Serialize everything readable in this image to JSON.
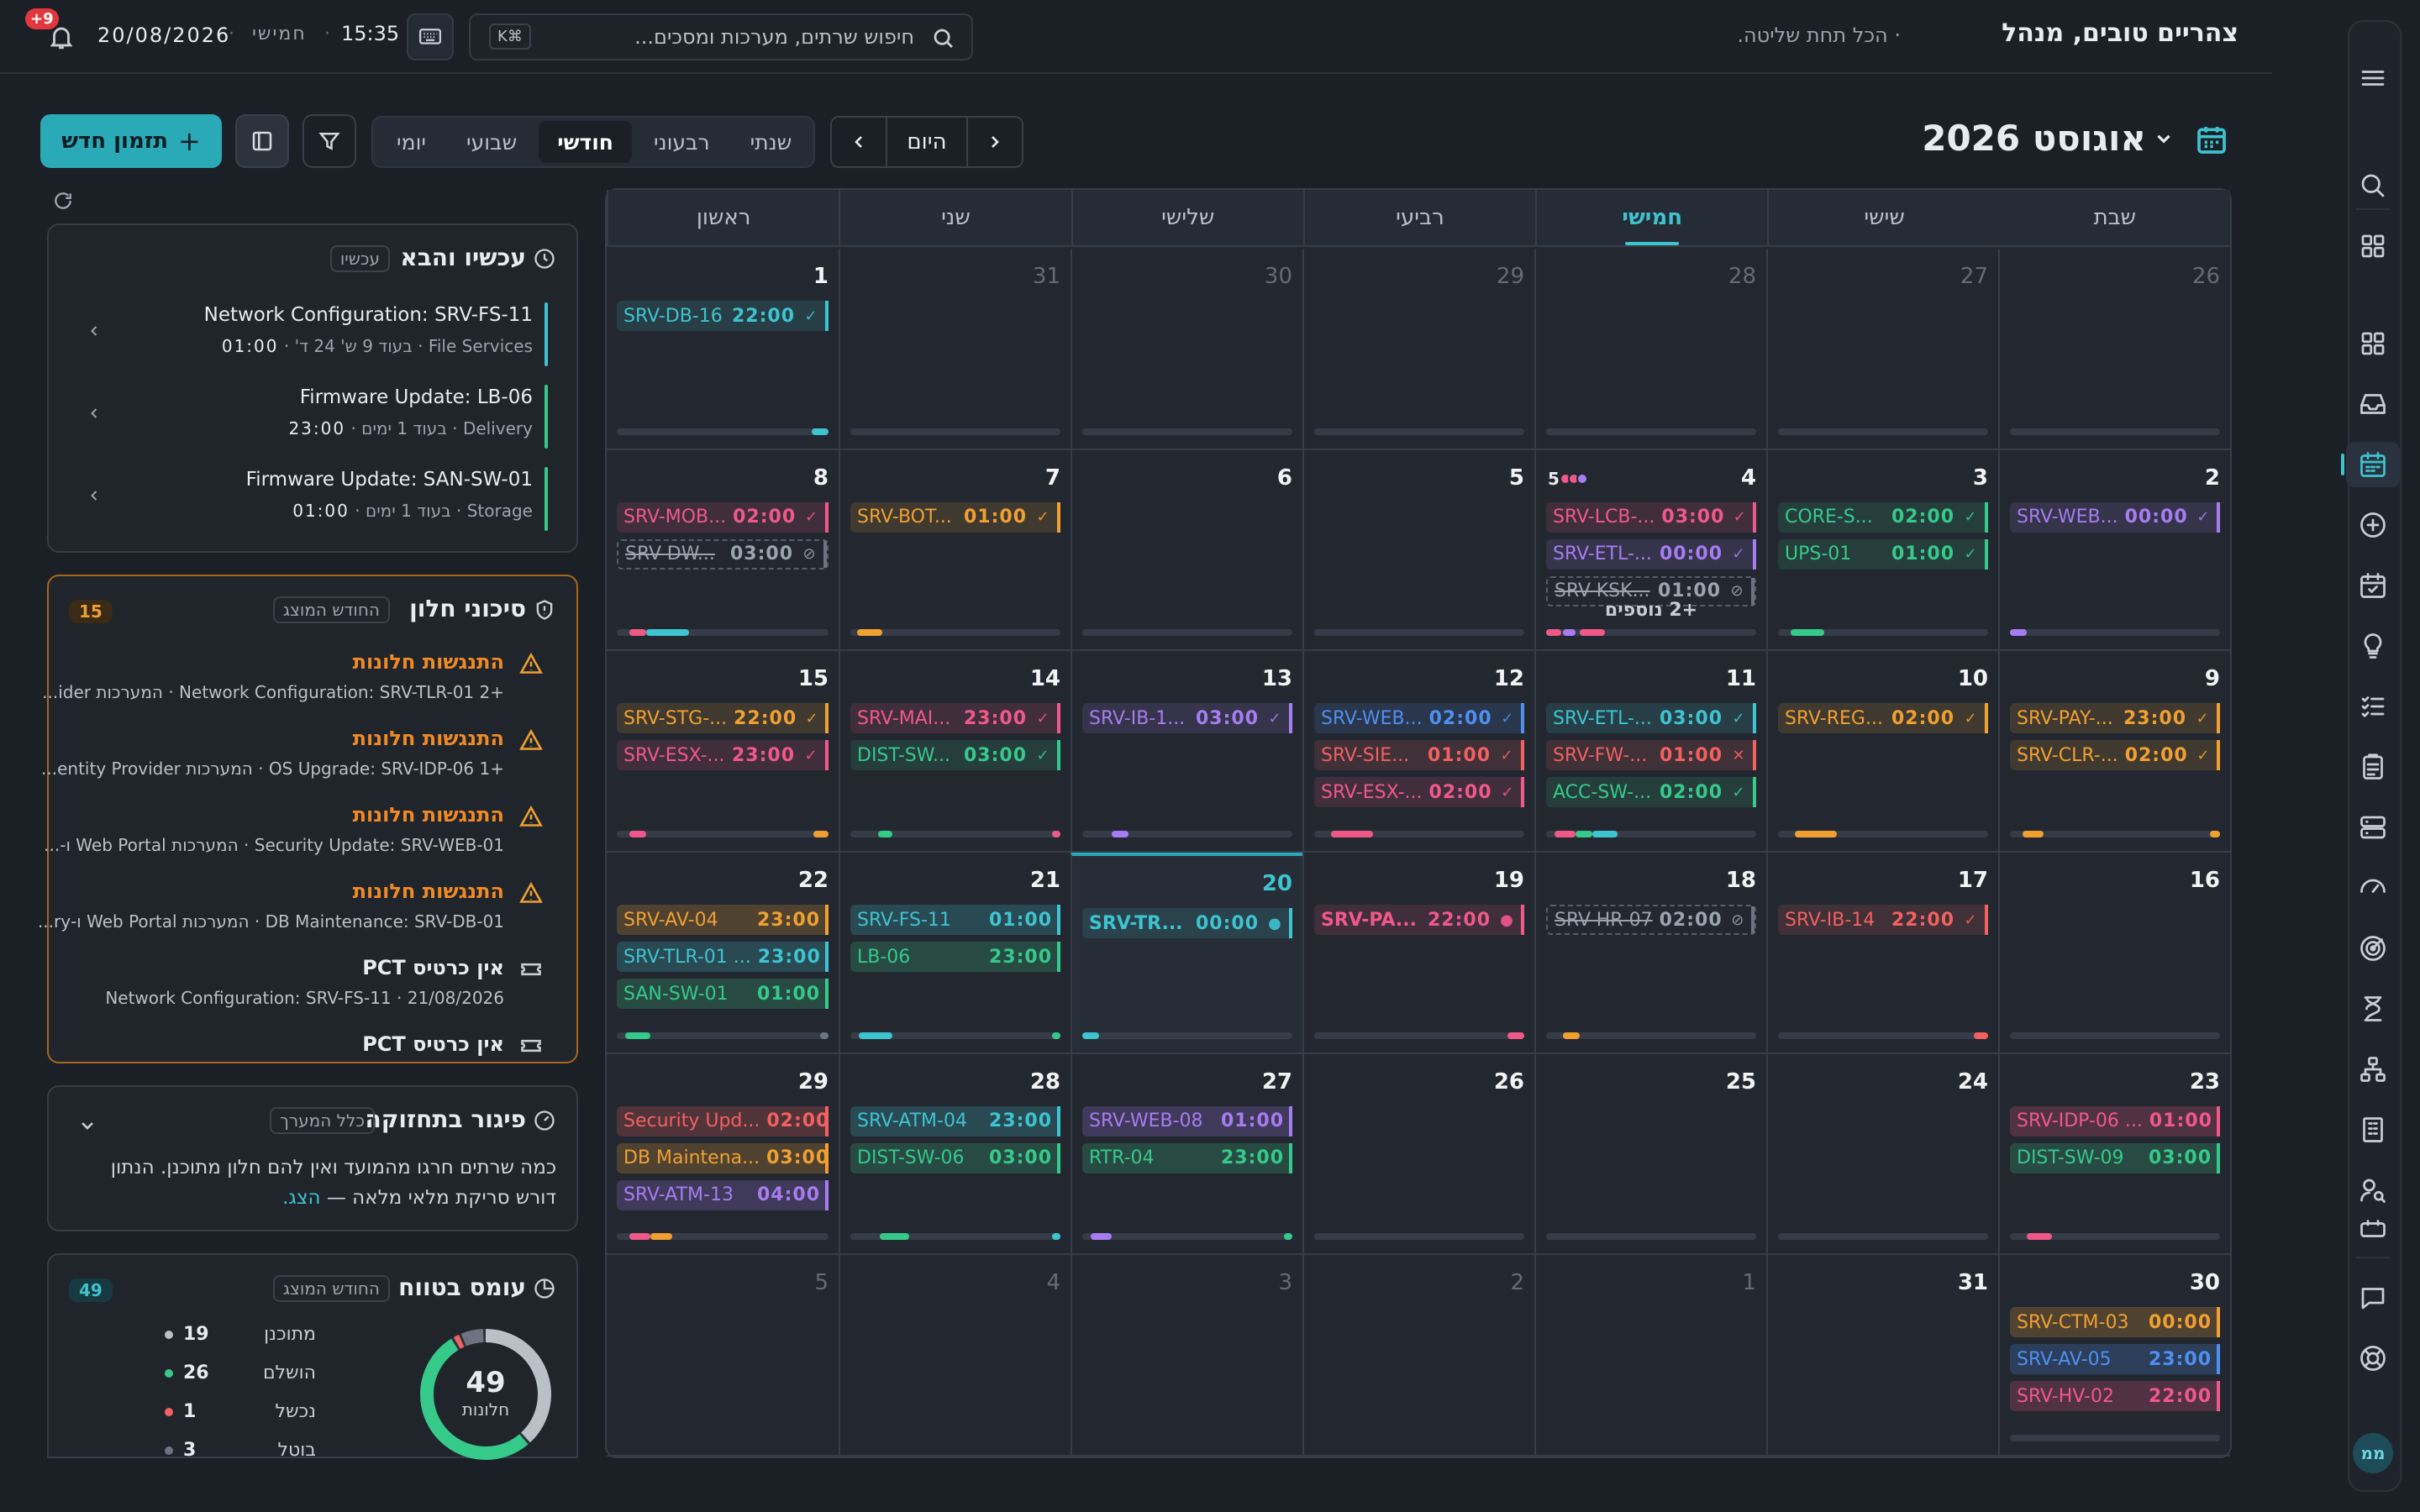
{
  "header": {
    "greeting": "צהריים טובים, מנהל",
    "subtitle": "· הכל תחת שליטה.",
    "search_placeholder": "חיפוש שרתים, מערכות ומסכים...",
    "search_shortcut": "⌘K",
    "time": "15:35",
    "weekday": "חמישי",
    "date": "20/08/2026",
    "notifications": "9+"
  },
  "toolbar": {
    "month_title": "אוגוסט 2026",
    "today": "היום",
    "views": [
      "יומי",
      "שבועי",
      "חודשי",
      "רבעוני",
      "שנתי"
    ],
    "active_view": "חודשי",
    "new_button": "תזמון חדש"
  },
  "calendar": {
    "weekdays": [
      "ראשון",
      "שני",
      "שלישי",
      "רביעי",
      "חמישי",
      "שישי",
      "שבת"
    ],
    "today_weekday": "חמישי",
    "colors": {
      "cyan": "#3ec3d0",
      "purple": "#a67cf0",
      "pink": "#f0588a",
      "orange": "#f0a030",
      "green": "#35c98a",
      "red": "#f26060",
      "blue": "#4f8ff0",
      "gray": "#6b7480"
    },
    "weeks": [
      [
        {
          "day": "26",
          "other": true,
          "events": [],
          "bar": []
        },
        {
          "day": "27",
          "other": true,
          "events": [],
          "bar": []
        },
        {
          "day": "28",
          "other": true,
          "events": [],
          "bar": []
        },
        {
          "day": "29",
          "other": true,
          "events": [],
          "bar": []
        },
        {
          "day": "30",
          "other": true,
          "events": [],
          "bar": []
        },
        {
          "day": "31",
          "other": true,
          "events": [],
          "bar": []
        },
        {
          "day": "1",
          "events": [
            {
              "name": "SRV-DB-16",
              "time": "22:00",
              "color": "cyan",
              "status": "✓"
            }
          ],
          "bar": [
            [
              "cyan",
              0,
              0.08
            ]
          ]
        }
      ],
      [
        {
          "day": "2",
          "events": [
            {
              "name": "SRV-WEB...",
              "time": "00:00",
              "color": "purple",
              "status": "✓"
            }
          ],
          "bar": [
            [
              "purple",
              0.92,
              0.08
            ]
          ]
        },
        {
          "day": "3",
          "events": [
            {
              "name": "CORE-S...",
              "time": "02:00",
              "color": "green",
              "status": "✓"
            },
            {
              "name": "UPS-01",
              "time": "01:00",
              "color": "green",
              "status": "✓"
            }
          ],
          "bar": [
            [
              "green",
              0.78,
              0.16
            ]
          ]
        },
        {
          "day": "4",
          "dots": {
            "count": "5",
            "colors": [
              "pink",
              "pink",
              "purple"
            ]
          },
          "events": [
            {
              "name": "SRV-LCB-...",
              "time": "03:00",
              "color": "pink",
              "status": "✓"
            },
            {
              "name": "SRV-ETL-...",
              "time": "00:00",
              "color": "purple",
              "status": "✓"
            },
            {
              "name": "SRV-KSK...",
              "time": "01:00",
              "color": "gray",
              "status": "⊘",
              "dashed": true
            }
          ],
          "more": "+2 נוספים",
          "bar": [
            [
              "pink",
              0.72,
              0.12
            ],
            [
              "purple",
              0.86,
              0.06
            ],
            [
              "pink",
              0.93,
              0.07
            ]
          ]
        },
        {
          "day": "5",
          "events": [],
          "bar": []
        },
        {
          "day": "6",
          "events": [],
          "bar": []
        },
        {
          "day": "7",
          "events": [
            {
              "name": "SRV-BOT...",
              "time": "01:00",
              "color": "orange",
              "status": "✓"
            }
          ],
          "bar": [
            [
              "orange",
              0.85,
              0.12
            ]
          ]
        },
        {
          "day": "8",
          "events": [
            {
              "name": "SRV-MOB...",
              "time": "02:00",
              "color": "pink",
              "status": "✓"
            },
            {
              "name": "SRV-DW...",
              "time": "03:00",
              "color": "gray",
              "status": "⊘",
              "dashed": true
            }
          ],
          "bar": [
            [
              "cyan",
              0.66,
              0.2
            ],
            [
              "pink",
              0.86,
              0.08
            ]
          ]
        }
      ],
      [
        {
          "day": "9",
          "events": [
            {
              "name": "SRV-PAY-...",
              "time": "23:00",
              "color": "orange",
              "status": "✓"
            },
            {
              "name": "SRV-CLR-...",
              "time": "02:00",
              "color": "orange",
              "status": "✓"
            }
          ],
          "bar": [
            [
              "orange",
              0,
              0.05
            ],
            [
              "orange",
              0.84,
              0.1
            ]
          ]
        },
        {
          "day": "10",
          "events": [
            {
              "name": "SRV-REG...",
              "time": "02:00",
              "color": "orange",
              "status": "✓"
            }
          ],
          "bar": [
            [
              "orange",
              0.72,
              0.2
            ]
          ]
        },
        {
          "day": "11",
          "events": [
            {
              "name": "SRV-ETL-...",
              "time": "03:00",
              "color": "cyan",
              "status": "✓"
            },
            {
              "name": "SRV-FW-...",
              "time": "01:00",
              "color": "red",
              "status": "✕"
            },
            {
              "name": "ACC-SW-...",
              "time": "02:00",
              "color": "green",
              "status": "✓"
            }
          ],
          "bar": [
            [
              "cyan",
              0.66,
              0.12
            ],
            [
              "green",
              0.78,
              0.08
            ],
            [
              "pink",
              0.86,
              0.1
            ]
          ]
        },
        {
          "day": "12",
          "events": [
            {
              "name": "SRV-WEB...",
              "time": "02:00",
              "color": "blue",
              "status": "✓"
            },
            {
              "name": "SRV-SIE...",
              "time": "01:00",
              "color": "red",
              "status": "✓"
            },
            {
              "name": "SRV-ESX-...",
              "time": "02:00",
              "color": "pink",
              "status": "✓"
            }
          ],
          "bar": [
            [
              "pink",
              0.72,
              0.2
            ]
          ]
        },
        {
          "day": "13",
          "events": [
            {
              "name": "SRV-IB-1...",
              "time": "03:00",
              "color": "purple",
              "status": "✓"
            }
          ],
          "bar": [
            [
              "purple",
              0.78,
              0.08
            ]
          ]
        },
        {
          "day": "14",
          "events": [
            {
              "name": "SRV-MAI...",
              "time": "23:00",
              "color": "pink",
              "status": "✓"
            },
            {
              "name": "DIST-SW...",
              "time": "03:00",
              "color": "green",
              "status": "✓"
            }
          ],
          "bar": [
            [
              "pink",
              0,
              0.04
            ],
            [
              "green",
              0.8,
              0.07
            ]
          ]
        },
        {
          "day": "15",
          "events": [
            {
              "name": "SRV-STG-...",
              "time": "22:00",
              "color": "orange",
              "status": "✓"
            },
            {
              "name": "SRV-ESX-...",
              "time": "23:00",
              "color": "pink",
              "status": "✓"
            }
          ],
          "bar": [
            [
              "orange",
              0,
              0.07
            ],
            [
              "pink",
              0.86,
              0.08
            ]
          ]
        }
      ],
      [
        {
          "day": "16",
          "events": [],
          "bar": []
        },
        {
          "day": "17",
          "events": [
            {
              "name": "SRV-IB-14",
              "time": "22:00",
              "color": "red",
              "status": "✓"
            }
          ],
          "bar": [
            [
              "red",
              0,
              0.07
            ]
          ]
        },
        {
          "day": "18",
          "events": [
            {
              "name": "SRV-HR-07",
              "time": "02:00",
              "color": "gray",
              "status": "⊘",
              "dashed": true
            }
          ],
          "bar": [
            [
              "orange",
              0.84,
              0.08
            ]
          ]
        },
        {
          "day": "19",
          "events": [
            {
              "name": "SRV-PA...",
              "time": "22:00",
              "color": "pink",
              "status": "●",
              "big": true
            }
          ],
          "bar": [
            [
              "pink",
              0,
              0.08
            ]
          ]
        },
        {
          "day": "20",
          "today": true,
          "events": [
            {
              "name": "SRV-TR...",
              "time": "00:00",
              "color": "cyan",
              "status": "●",
              "big": true
            }
          ],
          "bar": [
            [
              "cyan",
              0.92,
              0.08
            ]
          ]
        },
        {
          "day": "21",
          "events": [
            {
              "name": "SRV-FS-11",
              "time": "01:00",
              "color": "cyan",
              "solid": true
            },
            {
              "name": "LB-06",
              "time": "23:00",
              "color": "green",
              "solid": true
            }
          ],
          "bar": [
            [
              "green",
              0,
              0.04
            ],
            [
              "cyan",
              0.8,
              0.16
            ]
          ]
        },
        {
          "day": "22",
          "events": [
            {
              "name": "SRV-AV-04",
              "time": "23:00",
              "color": "orange",
              "solid": true
            },
            {
              "name": "SRV-TLR-01 ...",
              "time": "23:00",
              "color": "cyan",
              "solid": true
            },
            {
              "name": "SAN-SW-01",
              "time": "01:00",
              "color": "green",
              "solid": true
            }
          ],
          "bar": [
            [
              "gray",
              0,
              0.04
            ],
            [
              "green",
              0.84,
              0.12
            ]
          ]
        }
      ],
      [
        {
          "day": "23",
          "events": [
            {
              "name": "SRV-IDP-06 ...",
              "time": "01:00",
              "color": "pink",
              "solid": true
            },
            {
              "name": "DIST-SW-09",
              "time": "03:00",
              "color": "green",
              "solid": true
            }
          ],
          "bar": [
            [
              "pink",
              0.8,
              0.12
            ]
          ]
        },
        {
          "day": "24",
          "events": [],
          "bar": []
        },
        {
          "day": "25",
          "events": [],
          "bar": []
        },
        {
          "day": "26",
          "events": [],
          "bar": []
        },
        {
          "day": "27",
          "events": [
            {
              "name": "SRV-WEB-08",
              "time": "01:00",
              "color": "purple",
              "solid": true
            },
            {
              "name": "RTR-04",
              "time": "23:00",
              "color": "green",
              "solid": true
            }
          ],
          "bar": [
            [
              "green",
              0,
              0.04
            ],
            [
              "purple",
              0.86,
              0.1
            ]
          ]
        },
        {
          "day": "28",
          "events": [
            {
              "name": "SRV-ATM-04",
              "time": "23:00",
              "color": "cyan",
              "solid": true
            },
            {
              "name": "DIST-SW-06",
              "time": "03:00",
              "color": "green",
              "solid": true
            }
          ],
          "bar": [
            [
              "cyan",
              0,
              0.04
            ],
            [
              "green",
              0.72,
              0.14
            ]
          ]
        },
        {
          "day": "29",
          "events": [
            {
              "name": "Security Upd...",
              "time": "02:00",
              "color": "red",
              "solid": true
            },
            {
              "name": "DB Maintena...",
              "time": "03:00",
              "color": "orange",
              "solid": true
            },
            {
              "name": "SRV-ATM-13",
              "time": "04:00",
              "color": "purple",
              "solid": true
            }
          ],
          "bar": [
            [
              "orange",
              0.74,
              0.1
            ],
            [
              "pink",
              0.84,
              0.1
            ]
          ]
        }
      ],
      [
        {
          "day": "30",
          "events": [
            {
              "name": "SRV-CTM-03",
              "time": "00:00",
              "color": "orange",
              "solid": true
            },
            {
              "name": "SRV-AV-05",
              "time": "23:00",
              "color": "blue",
              "solid": true
            },
            {
              "name": "SRV-HV-02",
              "time": "22:00",
              "color": "pink",
              "solid": true
            }
          ],
          "bar": []
        },
        {
          "day": "31",
          "events": [],
          "bar": []
        },
        {
          "day": "1",
          "other": true,
          "events": [],
          "bar": []
        },
        {
          "day": "2",
          "other": true,
          "events": [],
          "bar": []
        },
        {
          "day": "3",
          "other": true,
          "events": [],
          "bar": []
        },
        {
          "day": "4",
          "other": true,
          "events": [],
          "bar": []
        },
        {
          "day": "5",
          "other": true,
          "events": [],
          "bar": []
        }
      ]
    ]
  },
  "now_next": {
    "title": "עכשיו והבא",
    "pill": "עכשיו",
    "items": [
      {
        "title": "Network Configuration: SRV-FS-11",
        "sub": "File Services · בעוד 9 ש' 24 ד'",
        "time": "01:00",
        "color": "#3ec3d0"
      },
      {
        "title": "Firmware Update: LB-06",
        "sub": "Delivery · בעוד 1 ימים",
        "time": "23:00",
        "color": "#35c98a"
      },
      {
        "title": "Firmware Update: SAN-SW-01",
        "sub": "Storage · בעוד 1 ימים",
        "time": "01:00",
        "color": "#35c98a"
      }
    ]
  },
  "risks": {
    "title": "סיכוני חלון",
    "pill": "החודש המוצג",
    "count": "15",
    "items": [
      {
        "title": "התנגשות חלונות",
        "sub": "+2 Network Configuration: SRV-TLR-01 · המערכות ider...",
        "kind": "warn"
      },
      {
        "title": "התנגשות חלונות",
        "sub": "+1 OS Upgrade: SRV-IDP-06 · המערכות entity Provider...",
        "kind": "warn"
      },
      {
        "title": "התנגשות חלונות",
        "sub": "Security Update: SRV-WEB-01 · המערכות Web Portal ו-...",
        "kind": "warn"
      },
      {
        "title": "התנגשות חלונות",
        "sub": "DB Maintenance: SRV-DB-01 · המערכות Web Portal ו-ry...",
        "kind": "warn"
      },
      {
        "title": "אין כרטיס PCT",
        "sub": "Network Configuration: SRV-FS-11 · 21/08/2026",
        "kind": "ticket"
      },
      {
        "title": "אין כרטיס PCT",
        "sub": "",
        "kind": "ticket"
      }
    ]
  },
  "lag": {
    "title": "פיגור בתחזוקה",
    "pill": "כלל המערך",
    "text": "כמה שרתים חרגו מהמועד ואין להם חלון מתוכנן. הנתון דורש סריקת מלאי מלאה —",
    "link": "הצג."
  },
  "load": {
    "title": "עומס בטווח",
    "pill": "החודש המוצג",
    "count": "49",
    "total": "49",
    "total_label": "חלונות",
    "legend": [
      {
        "label": "מתוכנן",
        "value": 19,
        "color": "#b9c0c8"
      },
      {
        "label": "הושלם",
        "value": 26,
        "color": "#35c98a"
      },
      {
        "label": "נכשל",
        "value": 1,
        "color": "#f26060"
      },
      {
        "label": "בוטל",
        "value": 3,
        "color": "#6b7480"
      }
    ]
  },
  "rail": {
    "items": [
      "menu-icon",
      "search-icon",
      "apps-icon",
      "dashboard-icon",
      "inbox-icon",
      "calendar-icon",
      "add-circle-icon",
      "calendar-check-icon",
      "lightbulb-icon",
      "checklist-icon",
      "clipboard-icon",
      "server-icon",
      "gauge-icon",
      "radar-icon",
      "hourglass-icon",
      "hierarchy-icon",
      "building-icon",
      "user-search-icon",
      "calendar-small-icon",
      "chat-icon",
      "support-icon"
    ],
    "active": "calendar-icon",
    "avatar": "ממ"
  }
}
